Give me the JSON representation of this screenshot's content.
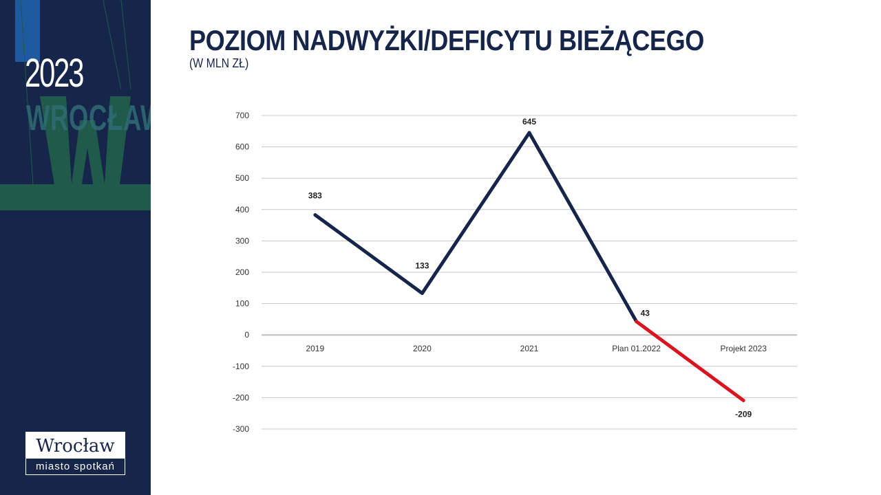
{
  "sidebar": {
    "year": "2023",
    "city": "WROCŁAW",
    "logo_main": "Wrocław",
    "logo_tagline": "miasto spotkań"
  },
  "header": {
    "title": "POZIOM NADWYŻKI/DEFICYTU BIEŻĄCEGO",
    "subtitle": "(W MLN ZŁ)"
  },
  "colors": {
    "navy": "#16254a",
    "red": "#d9141e",
    "grid": "#c8c8c8",
    "green": "#1f5a4b"
  },
  "chart_data": {
    "type": "line",
    "categories": [
      "2019",
      "2020",
      "2021",
      "Plan 01.2022",
      "Projekt 2023"
    ],
    "values": [
      383,
      133,
      645,
      43,
      -209
    ],
    "data_labels": [
      "383",
      "133",
      "645",
      "43",
      "-209"
    ],
    "ylim": [
      -300,
      700
    ],
    "yticks": [
      700,
      600,
      500,
      400,
      300,
      200,
      100,
      0,
      -100,
      -200,
      -300
    ],
    "grid": true,
    "legend": "none",
    "segment_colors": [
      "#16254a",
      "#16254a",
      "#16254a",
      "#d9141e"
    ]
  }
}
